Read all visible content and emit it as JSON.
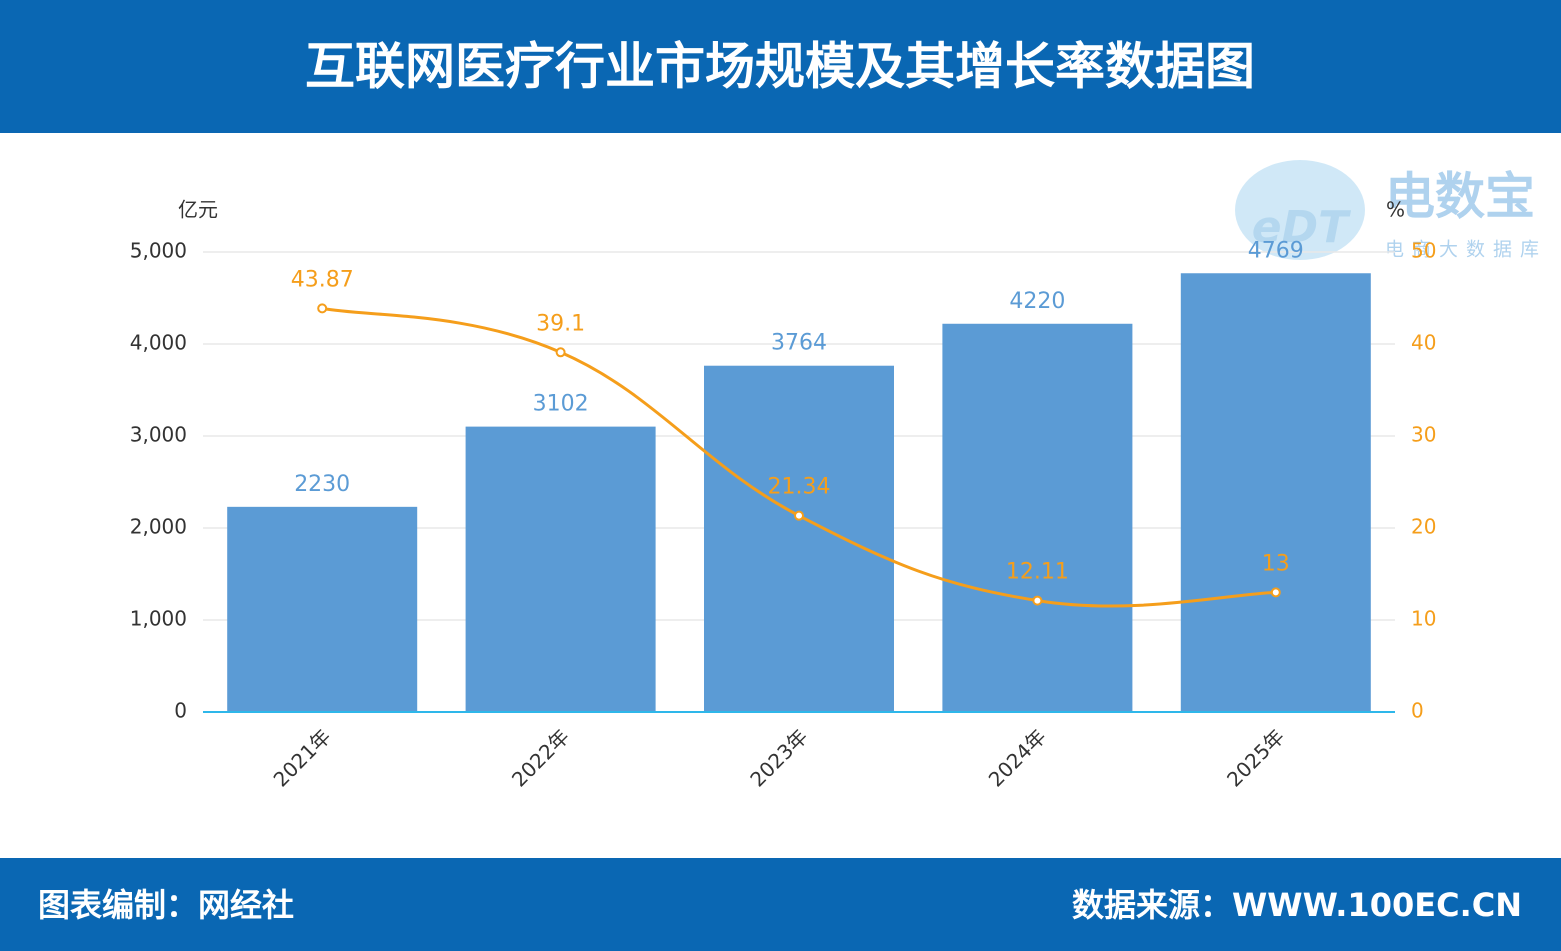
{
  "chart_data": {
    "type": "combo",
    "title": "互联网医疗行业市场规模及其增长率数据图",
    "footer_left": "图表编制：网经社",
    "footer_right": "数据来源：WWW.100EC.CN",
    "watermark": {
      "logo": "eDT",
      "name": "电数宝",
      "subtitle": "电商大数据库"
    },
    "y_unit": "亿元",
    "y2_unit": "%",
    "categories": [
      "2021年",
      "2022年",
      "2023年",
      "2024年",
      "2025年"
    ],
    "series": [
      {
        "type": "bar",
        "color": "#5b9bd5",
        "values": [
          2230,
          3102,
          3764,
          4220,
          4769
        ]
      },
      {
        "type": "line",
        "axis": "y2",
        "color": "#f59e1b",
        "values": [
          43.87,
          39.1,
          21.34,
          12.11,
          13
        ]
      }
    ],
    "ylim": [
      0,
      5000
    ],
    "yticks": [
      0,
      {
        "value": 1000,
        "label": "1,000"
      },
      {
        "value": 2000,
        "label": "2,000"
      },
      {
        "value": 3000,
        "label": "3,000"
      },
      {
        "value": 4000,
        "label": "4,000"
      },
      {
        "value": 5000,
        "label": "5,000"
      }
    ],
    "y2lim": [
      0,
      50
    ],
    "y2ticks": [
      0,
      10,
      20,
      30,
      40,
      50
    ],
    "grid": true
  }
}
